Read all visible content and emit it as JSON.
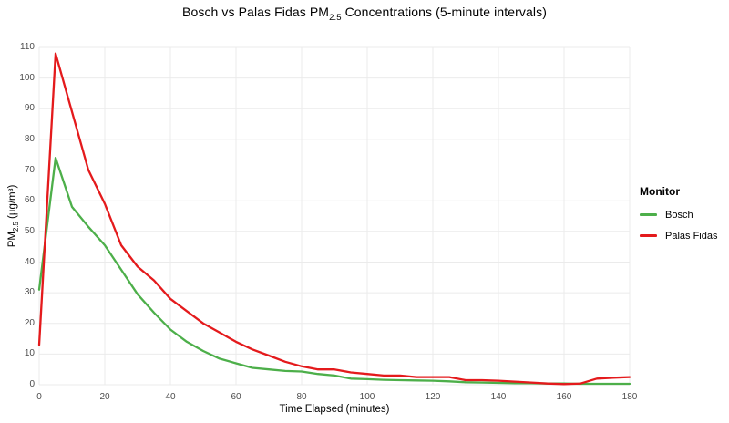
{
  "title": {
    "pre": "Bosch vs Palas Fidas PM",
    "sub": "2.5",
    "post": " Concentrations (5-minute intervals)"
  },
  "y_axis_title": {
    "pre": "PM",
    "sub": "2.5",
    "post": " (µg/m³)"
  },
  "x_axis_title": "Time Elapsed (minutes)",
  "legend": {
    "title": "Monitor",
    "items": [
      "Bosch",
      "Palas Fidas"
    ]
  },
  "colors": {
    "background": "#ffffff",
    "grid": "#ebebeb",
    "tick_text": "#4d4d4d",
    "title_text": "#000000",
    "bosch": "#4daf4a",
    "palas_fidas": "#e41a1c"
  },
  "chart_data": {
    "type": "line",
    "title": "Bosch vs Palas Fidas PM2.5 Concentrations (5-minute intervals)",
    "xlabel": "Time Elapsed (minutes)",
    "ylabel": "PM2.5 (µg/m³)",
    "xlim": [
      0,
      180
    ],
    "ylim": [
      0,
      110
    ],
    "x_ticks": [
      0,
      20,
      40,
      60,
      80,
      100,
      120,
      140,
      160,
      180
    ],
    "y_ticks": [
      0,
      10,
      20,
      30,
      40,
      50,
      60,
      70,
      80,
      90,
      100,
      110
    ],
    "grid": true,
    "legend_position": "right",
    "legend_title": "Monitor",
    "x": [
      0,
      5,
      10,
      15,
      20,
      25,
      30,
      35,
      40,
      45,
      50,
      55,
      60,
      65,
      70,
      75,
      80,
      85,
      90,
      95,
      100,
      105,
      110,
      115,
      120,
      125,
      130,
      135,
      140,
      145,
      150,
      155,
      160,
      165,
      170,
      175,
      180
    ],
    "series": [
      {
        "name": "Bosch",
        "color": "#4daf4a",
        "values": [
          31,
          74,
          58,
          51.5,
          45.5,
          37.5,
          29.5,
          23.5,
          18,
          14,
          11,
          8.5,
          7,
          5.5,
          5,
          4.5,
          4.3,
          3.5,
          3,
          2,
          1.8,
          1.6,
          1.5,
          1.4,
          1.3,
          1.1,
          0.8,
          0.7,
          0.6,
          0.5,
          0.5,
          0.4,
          0.4,
          0.3,
          0.3,
          0.3,
          0.3
        ]
      },
      {
        "name": "Palas Fidas",
        "color": "#e41a1c",
        "values": [
          13,
          108,
          89,
          70,
          59,
          45.5,
          38.5,
          34,
          28,
          24,
          20,
          17,
          14,
          11.5,
          9.5,
          7.5,
          6,
          5,
          5,
          4,
          3.5,
          3,
          3,
          2.5,
          2.5,
          2.5,
          1.5,
          1.5,
          1.3,
          1,
          0.7,
          0.4,
          0.2,
          0.4,
          2,
          2.3,
          2.5
        ]
      }
    ]
  }
}
